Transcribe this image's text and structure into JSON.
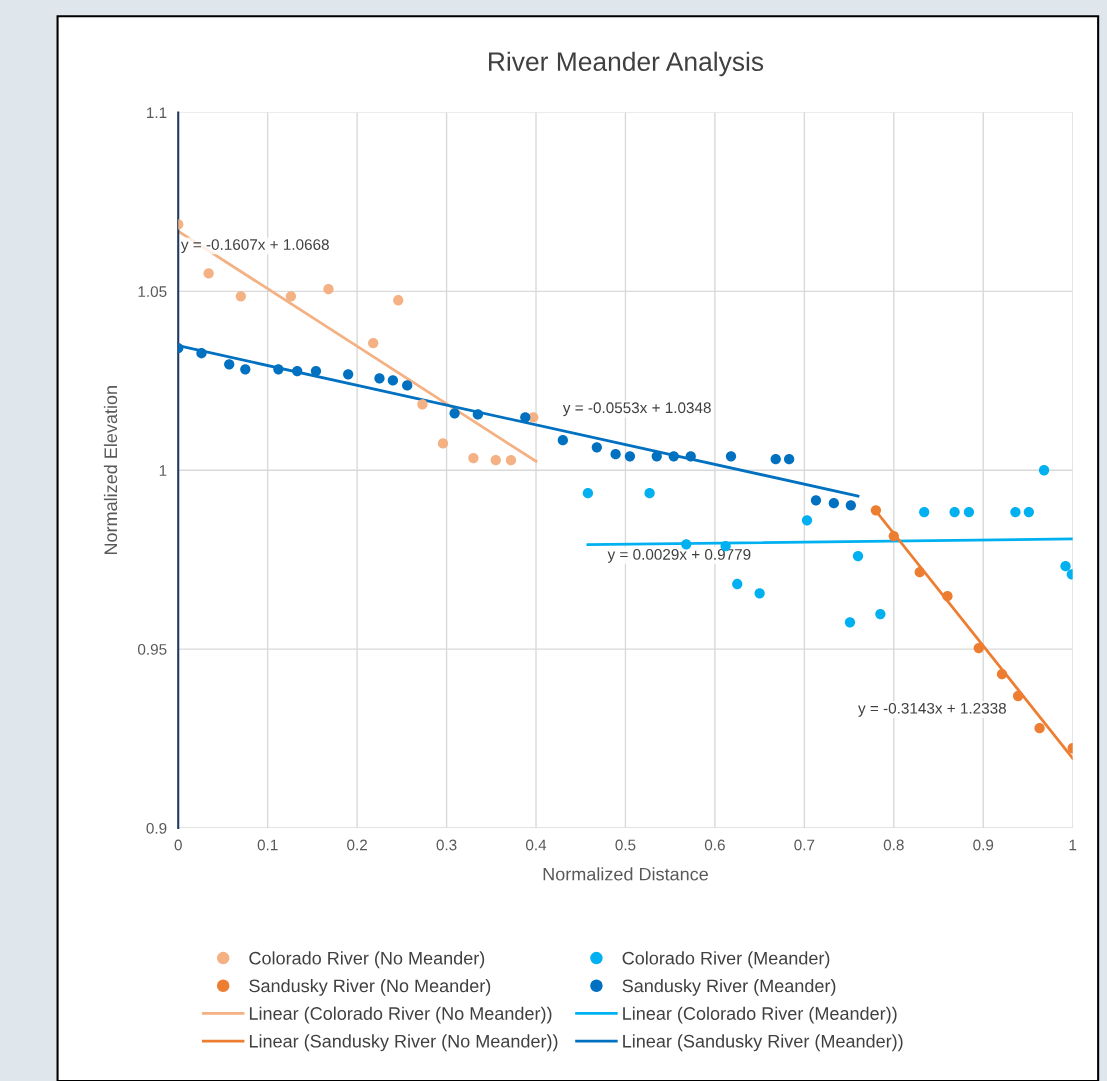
{
  "chart_data": {
    "type": "scatter",
    "title": "River Meander Analysis",
    "xlabel": "Normalized Distance",
    "ylabel": "Normalized Elevation",
    "xlim": [
      0,
      1
    ],
    "xticks": [
      0,
      0.1,
      0.2,
      0.3,
      0.4,
      0.5,
      0.6,
      0.7,
      0.8,
      0.9,
      1
    ],
    "ylim": [
      0.9,
      1.1
    ],
    "yticks": [
      0.9,
      0.95,
      1,
      1.05,
      1.1
    ],
    "grid": true,
    "legend": "bottom",
    "series": [
      {
        "name": "Colorado River (No Meander)",
        "color": "#f4b183",
        "marker": "circle",
        "x": [
          0,
          0.034,
          0.07,
          0.126,
          0.168,
          0.218,
          0.246,
          0.273,
          0.296,
          0.33,
          0.355,
          0.372,
          0.397
        ],
        "values": [
          1.0687,
          1.055,
          1.0486,
          1.0486,
          1.0506,
          1.0355,
          1.0475,
          1.0184,
          1.0075,
          1.0034,
          1.0028,
          1.0028,
          1.0148
        ]
      },
      {
        "name": "Colorado River (Meander)",
        "color": "#00b0f0",
        "marker": "circle",
        "x": [
          0.458,
          0.527,
          0.568,
          0.612,
          0.625,
          0.65,
          0.703,
          0.751,
          0.76,
          0.785,
          0.834,
          0.868,
          0.884,
          0.936,
          0.951,
          0.968,
          0.992,
          0.999
        ],
        "values": [
          0.9936,
          0.9936,
          0.9793,
          0.9788,
          0.9682,
          0.9656,
          0.986,
          0.9575,
          0.976,
          0.9598,
          0.9883,
          0.9883,
          0.9883,
          0.9883,
          0.9883,
          1.0,
          0.9732,
          0.9709
        ]
      },
      {
        "name": "Sandusky River (No Meander)",
        "color": "#ed7d31",
        "marker": "circle",
        "x": [
          0.78,
          0.8,
          0.829,
          0.86,
          0.895,
          0.921,
          0.939,
          0.963,
          1.0
        ],
        "values": [
          0.9888,
          0.9816,
          0.9715,
          0.9648,
          0.9503,
          0.943,
          0.9369,
          0.9279,
          0.9223
        ]
      },
      {
        "name": "Sandusky River (Meander)",
        "color": "#0070c0",
        "marker": "circle",
        "x": [
          0,
          0.026,
          0.057,
          0.075,
          0.112,
          0.133,
          0.154,
          0.19,
          0.225,
          0.24,
          0.256,
          0.309,
          0.335,
          0.388,
          0.43,
          0.468,
          0.489,
          0.505,
          0.535,
          0.554,
          0.573,
          0.618,
          0.668,
          0.683,
          0.713,
          0.733,
          0.752
        ],
        "values": [
          1.0341,
          1.0327,
          1.0296,
          1.0282,
          1.0282,
          1.0277,
          1.0277,
          1.0268,
          1.0257,
          1.0251,
          1.0237,
          1.0159,
          1.0156,
          1.0148,
          1.0084,
          1.0064,
          1.0045,
          1.0039,
          1.0039,
          1.0039,
          1.0039,
          1.0039,
          1.0031,
          1.0031,
          0.9916,
          0.9908,
          0.9902
        ]
      },
      {
        "name": "Linear (Colorado River (No Meander))",
        "color": "#f4b183",
        "type": "line",
        "x": [
          0,
          0.4
        ],
        "values": [
          1.0668,
          1.0025
        ]
      },
      {
        "name": "Linear (Colorado River (Meander))",
        "color": "#00b0f0",
        "type": "line",
        "x": [
          0.458,
          1
        ],
        "values": [
          0.9792,
          0.9808
        ]
      },
      {
        "name": "Linear (Sandusky River (No Meander))",
        "color": "#ed7d31",
        "type": "line",
        "x": [
          0.78,
          1
        ],
        "values": [
          0.9886,
          0.9195
        ]
      },
      {
        "name": "Linear (Sandusky River (Meander))",
        "color": "#0070c0",
        "type": "line",
        "x": [
          0,
          0.76
        ],
        "values": [
          1.0348,
          0.9928
        ]
      }
    ],
    "annotations": [
      "y = -0.1607x + 1.0668",
      "y = -0.0553x + 1.0348",
      "y = 0.0029x + 0.9779",
      "y = -0.3143x + 1.2338"
    ]
  }
}
